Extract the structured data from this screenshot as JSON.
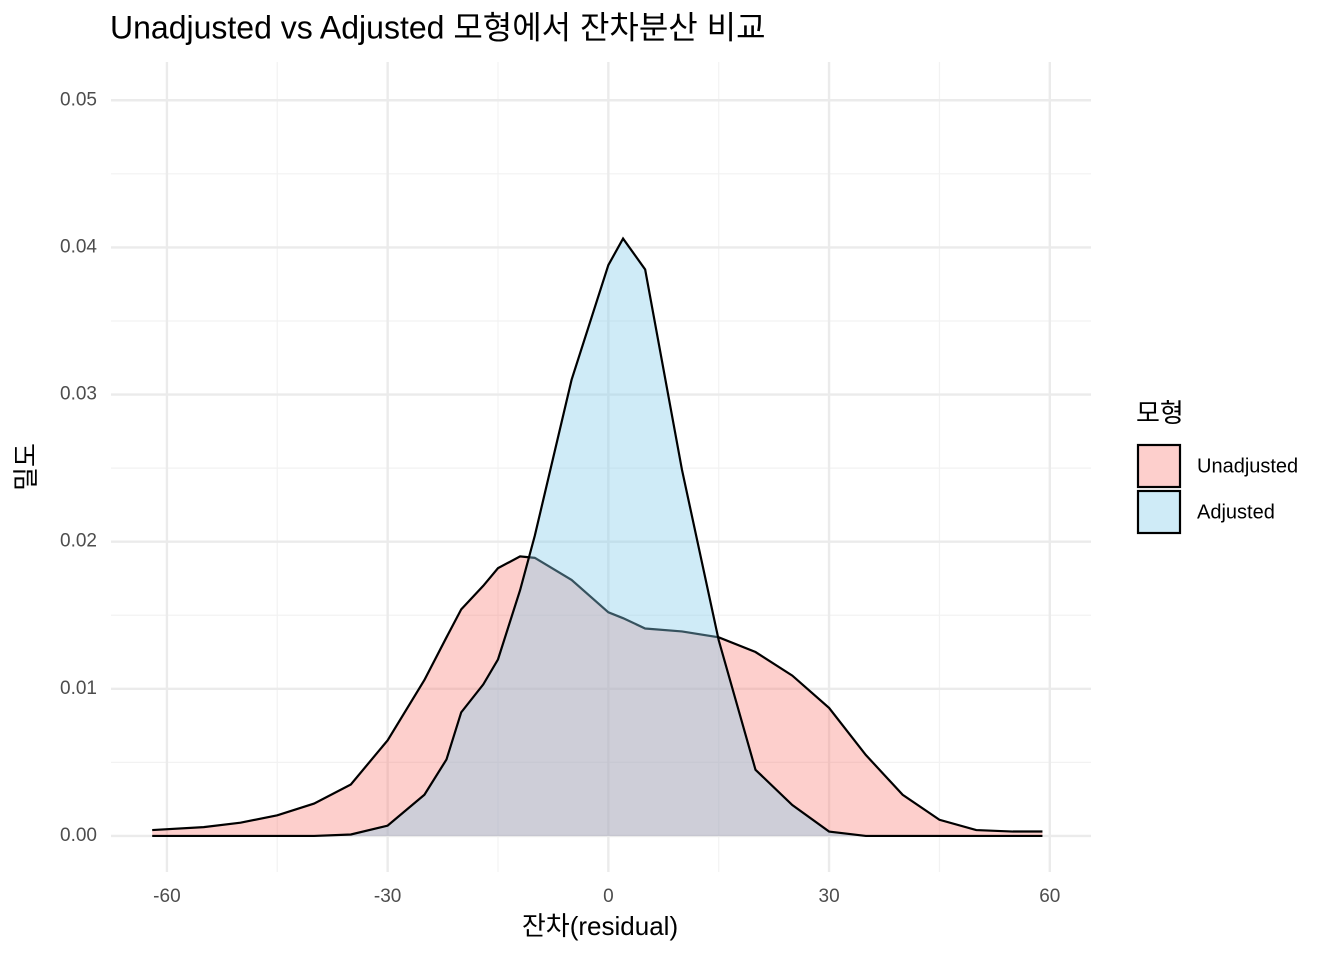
{
  "chart_data": {
    "type": "density",
    "title": "Unadjusted vs Adjusted 모형에서 잔차분산 비교",
    "x_label": "잔차(residual)",
    "y_label": "밀도",
    "legend_title": "모형",
    "legend_position": "right",
    "x": [
      -62,
      -55,
      -50,
      -45,
      -40,
      -35,
      -30,
      -25,
      -22,
      -20,
      -17,
      -15,
      -12,
      -10,
      -5,
      0,
      2,
      5,
      10,
      15,
      20,
      25,
      30,
      35,
      40,
      45,
      50,
      55,
      59
    ],
    "series": [
      {
        "name": "Unadjusted",
        "color": "#F8766D",
        "alpha": 0.35,
        "values": [
          0.0004,
          0.0006,
          0.0009,
          0.0014,
          0.0022,
          0.0035,
          0.0065,
          0.0106,
          0.0135,
          0.0154,
          0.017,
          0.0182,
          0.019,
          0.0189,
          0.0174,
          0.0152,
          0.0148,
          0.0141,
          0.0139,
          0.0135,
          0.0125,
          0.0109,
          0.0087,
          0.0055,
          0.0028,
          0.0011,
          0.0004,
          0.0003,
          0.0003
        ]
      },
      {
        "name": "Adjusted",
        "color": "#87CEEB",
        "alpha": 0.4,
        "values": [
          0,
          0,
          0,
          0,
          0,
          0.0001,
          0.0007,
          0.0028,
          0.0052,
          0.0084,
          0.0103,
          0.012,
          0.0167,
          0.0204,
          0.031,
          0.0388,
          0.0406,
          0.0385,
          0.0249,
          0.0133,
          0.0045,
          0.0021,
          0.0003,
          0,
          0,
          0,
          0,
          0,
          0
        ]
      }
    ],
    "xlim": [
      -67.6,
      65.6
    ],
    "ylim": [
      -0.00245,
      0.0526
    ],
    "xticks": [
      -60,
      -30,
      0,
      30,
      60
    ],
    "yticks": [
      {
        "value": 0,
        "label": "0.00"
      },
      0.01,
      0.02,
      0.03,
      0.04,
      0.05
    ],
    "x_minor_grid": [
      -45,
      -15,
      15,
      45
    ],
    "y_minor_grid": [
      0.005,
      0.015,
      0.025,
      0.035,
      0.045
    ],
    "grid": true
  }
}
